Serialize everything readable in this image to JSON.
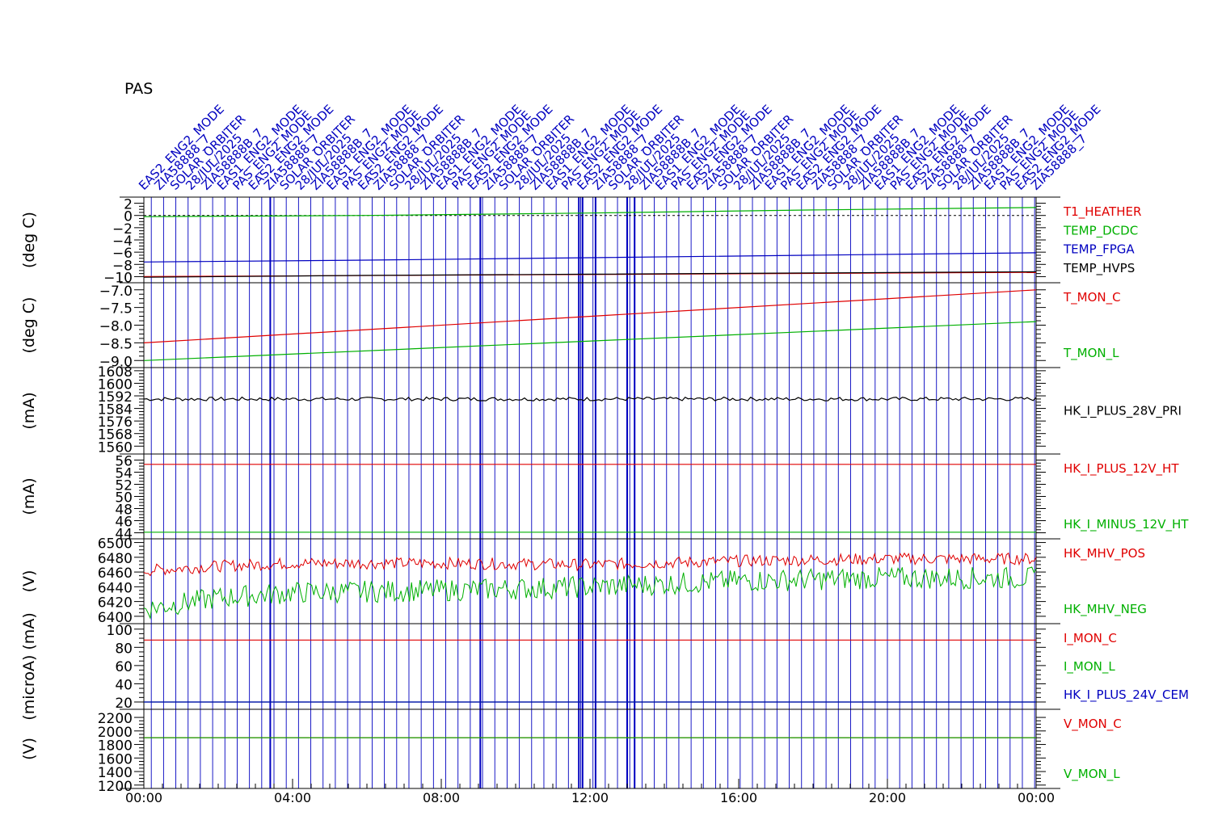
{
  "title": "PAS",
  "colors": {
    "red": "#e00000",
    "green": "#00b000",
    "blue": "#0000c0",
    "black": "#000000",
    "frame": "#000000"
  },
  "event_labels": {
    "note": "dense overlapping rotated blue labels as printed on the figure",
    "samples": [
      "EAS2_ENG2_MODE",
      "ZIA58888_7",
      "SOLAR_ORBITER",
      "28/JUL/2025",
      "ZIA58888B_7",
      "EAS1_ENG2_MODE",
      "PAS_ENG2_MODE"
    ]
  },
  "chart_data": [
    {
      "type": "line",
      "ylabel": "(deg C)",
      "ylim": [
        -11,
        3
      ],
      "y_ticks": [
        2,
        0,
        -2,
        -4,
        -6,
        -8,
        -10
      ],
      "y_tick_labels": [
        "2",
        "0",
        "−2",
        "−4",
        "−6",
        "−8",
        "−10"
      ],
      "series": [
        {
          "name": "T1_HEATHER",
          "color": "red",
          "x": [
            0,
            24
          ],
          "y": [
            -10.0,
            -9.3
          ]
        },
        {
          "name": "TEMP_DCDC",
          "color": "green",
          "x": [
            0,
            6,
            12,
            18,
            24
          ],
          "y": [
            -0.2,
            0.0,
            0.4,
            0.9,
            1.3
          ]
        },
        {
          "name": "TEMP_FPGA",
          "color": "blue",
          "x": [
            0,
            6,
            12,
            18,
            24
          ],
          "y": [
            -7.6,
            -7.3,
            -6.9,
            -6.5,
            -6.1
          ]
        },
        {
          "name": "TEMP_HVPS",
          "color": "black",
          "x": [
            0,
            6,
            12,
            18,
            24
          ],
          "y": [
            -10.1,
            -9.8,
            -9.6,
            -9.4,
            -9.2
          ]
        }
      ]
    },
    {
      "type": "line",
      "ylabel": "(deg C)",
      "ylim": [
        -9.2,
        -6.8
      ],
      "y_ticks": [
        -7.0,
        -7.5,
        -8.0,
        -8.5,
        -9.0
      ],
      "y_tick_labels": [
        "−7.0",
        "−7.5",
        "−8.0",
        "−8.5",
        "−9.0"
      ],
      "series": [
        {
          "name": "T_MON_C",
          "color": "red",
          "x": [
            0,
            24
          ],
          "y": [
            -8.5,
            -7.0
          ]
        },
        {
          "name": "T_MON_L",
          "color": "green",
          "x": [
            0,
            24
          ],
          "y": [
            -9.0,
            -7.9
          ]
        }
      ]
    },
    {
      "type": "line",
      "ylabel": "(mA)",
      "ylim": [
        1555,
        1610
      ],
      "y_ticks": [
        1608,
        1600,
        1592,
        1584,
        1576,
        1568,
        1560
      ],
      "y_tick_labels": [
        "1608",
        "1600",
        "1592",
        "1584",
        "1576",
        "1568",
        "1560"
      ],
      "series": [
        {
          "name": "HK_I_PLUS_28V_PRI",
          "color": "black",
          "x": [
            0,
            24
          ],
          "y": [
            1590,
            1590
          ]
        }
      ]
    },
    {
      "type": "line",
      "ylabel": "(mA)",
      "ylim": [
        43,
        57
      ],
      "y_ticks": [
        56,
        54,
        52,
        50,
        48,
        46,
        44
      ],
      "y_tick_labels": [
        "56",
        "54",
        "52",
        "50",
        "48",
        "46",
        "44"
      ],
      "series": [
        {
          "name": "HK_I_PLUS_12V_HT",
          "color": "red",
          "x": [
            0,
            24
          ],
          "y": [
            55.3,
            55.3
          ]
        },
        {
          "name": "HK_I_MINUS_12V_HT",
          "color": "green",
          "x": [
            0,
            24
          ],
          "y": [
            44.1,
            44.1
          ]
        }
      ]
    },
    {
      "type": "line",
      "ylabel": "(V)",
      "ylim": [
        6390,
        6505
      ],
      "y_ticks": [
        6500,
        6480,
        6460,
        6440,
        6420,
        6400
      ],
      "y_tick_labels": [
        "6500",
        "6480",
        "6460",
        "6440",
        "6420",
        "6400"
      ],
      "series": [
        {
          "name": "HK_MHV_POS",
          "color": "red",
          "x": [
            0,
            2,
            4,
            8,
            12,
            16,
            20,
            24
          ],
          "y": [
            6462,
            6468,
            6472,
            6472,
            6470,
            6475,
            6478,
            6478
          ]
        },
        {
          "name": "HK_MHV_NEG",
          "color": "green",
          "x": [
            0,
            2,
            4,
            8,
            12,
            16,
            20,
            24
          ],
          "y": [
            6410,
            6425,
            6432,
            6435,
            6440,
            6448,
            6452,
            6452
          ]
        }
      ]
    },
    {
      "type": "line",
      "ylabel": "(microA) (mA)",
      "ylim": [
        12,
        106
      ],
      "y_ticks": [
        100,
        80,
        60,
        40,
        20
      ],
      "y_tick_labels": [
        "100",
        "80",
        "60",
        "40",
        "20"
      ],
      "series": [
        {
          "name": "I_MON_C",
          "color": "red",
          "x": [
            0,
            24
          ],
          "y": [
            88,
            88
          ]
        },
        {
          "name": "I_MON_L",
          "color": "green",
          "x": [
            0,
            24
          ],
          "y": [
            20,
            20
          ]
        },
        {
          "name": "HK_I_PLUS_24V_CEM",
          "color": "blue",
          "x": [
            0,
            24
          ],
          "y": [
            20,
            20
          ]
        }
      ]
    },
    {
      "type": "line",
      "ylabel": "(V)",
      "ylim": [
        1150,
        2320
      ],
      "y_ticks": [
        2200,
        2000,
        1800,
        1600,
        1400,
        1200
      ],
      "y_tick_labels": [
        "2200",
        "2000",
        "1800",
        "1600",
        "1400",
        "1200"
      ],
      "series": [
        {
          "name": "V_MON_C",
          "color": "red",
          "x": [
            0,
            24
          ],
          "y": [
            1900,
            1900
          ]
        },
        {
          "name": "V_MON_L",
          "color": "green",
          "x": [
            0,
            24
          ],
          "y": [
            1900,
            1900
          ]
        }
      ]
    }
  ],
  "x_axis": {
    "range_hours": [
      0,
      24
    ],
    "ticks_hours": [
      0,
      4,
      8,
      12,
      16,
      20,
      24
    ],
    "tick_labels": [
      "00:00",
      "04:00",
      "08:00",
      "12:00",
      "16:00",
      "20:00",
      "00:00"
    ]
  }
}
